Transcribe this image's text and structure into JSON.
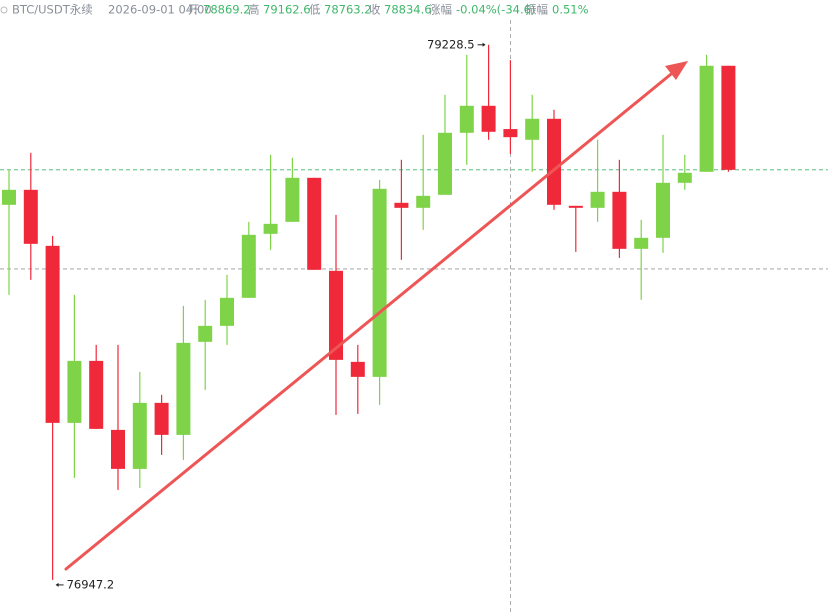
{
  "chart_data": {
    "type": "candlestick",
    "header": {
      "symbol": "BTC/USDT永续",
      "time": "2026-09-01 04:00",
      "open_label": "开",
      "high_label": "高",
      "low_label": "低",
      "close_label": "收",
      "change_label": "涨幅",
      "change": "-0.04%(-34.6)",
      "amplitude_label": "振幅",
      "amplitude": "0.51%"
    },
    "up_color": "#7ed348",
    "down_color": "#f0293a",
    "ylim": [
      76900,
      79300
    ],
    "crosshair": {
      "index": 23,
      "price": 78273
    },
    "high_label_index": 22,
    "low_label_index": 2,
    "candles": [
      {
        "open": 78546.2,
        "high": 78695.5,
        "low": 78162.5,
        "close": 78610.2
      },
      {
        "open": 78610.2,
        "high": 78768.0,
        "low": 78226.4,
        "close": 78379.9
      },
      {
        "open": 78371.4,
        "high": 78414.1,
        "low": 76947.2,
        "close": 77616.7
      },
      {
        "open": 77616.7,
        "high": 78162.5,
        "low": 77382.1,
        "close": 77881.0
      },
      {
        "open": 77881.0,
        "high": 77949.3,
        "low": 77591.1,
        "close": 77591.1
      },
      {
        "open": 77586.8,
        "high": 77949.3,
        "low": 77331.0,
        "close": 77420.5
      },
      {
        "open": 77420.5,
        "high": 77834.1,
        "low": 77339.5,
        "close": 77702.0
      },
      {
        "open": 77702.0,
        "high": 77736.1,
        "low": 77480.2,
        "close": 77565.5
      },
      {
        "open": 77565.5,
        "high": 78115.6,
        "low": 77458.9,
        "close": 77957.8
      },
      {
        "open": 77962.1,
        "high": 78141.2,
        "low": 77757.4,
        "close": 78030.3
      },
      {
        "open": 78030.3,
        "high": 78247.8,
        "low": 77949.3,
        "close": 78149.7
      },
      {
        "open": 78149.7,
        "high": 78473.8,
        "low": 78149.7,
        "close": 78418.3
      },
      {
        "open": 78422.6,
        "high": 78759.4,
        "low": 78354.4,
        "close": 78465.2
      },
      {
        "open": 78473.8,
        "high": 78746.7,
        "low": 78473.8,
        "close": 78661.4
      },
      {
        "open": 78661.4,
        "high": 78661.4,
        "low": 78269.1,
        "close": 78269.1
      },
      {
        "open": 78264.8,
        "high": 78503.6,
        "low": 77650.8,
        "close": 77885.3
      },
      {
        "open": 77876.8,
        "high": 77949.3,
        "low": 77655.0,
        "close": 77812.8
      },
      {
        "open": 77812.8,
        "high": 78652.8,
        "low": 77693.4,
        "close": 78614.5
      },
      {
        "open": 78554.8,
        "high": 78738.1,
        "low": 78311.7,
        "close": 78533.4
      },
      {
        "open": 78533.4,
        "high": 78844.7,
        "low": 78439.6,
        "close": 78584.6
      },
      {
        "open": 78588.9,
        "high": 79015.3,
        "low": 78588.9,
        "close": 78853.3
      },
      {
        "open": 78853.3,
        "high": 79185.9,
        "low": 78716.8,
        "close": 78968.4
      },
      {
        "open": 78968.4,
        "high": 79228.5,
        "low": 78823.4,
        "close": 78857.5
      },
      {
        "open": 78869.2,
        "high": 79162.6,
        "low": 78763.2,
        "close": 78834.6
      },
      {
        "open": 78823.4,
        "high": 79015.3,
        "low": 78687.0,
        "close": 78913.0
      },
      {
        "open": 78913.0,
        "high": 78951.3,
        "low": 78524.9,
        "close": 78546.2
      },
      {
        "open": 78542.0,
        "high": 78542.0,
        "low": 78345.8,
        "close": 78533.4
      },
      {
        "open": 78533.4,
        "high": 78823.4,
        "low": 78473.8,
        "close": 78601.7
      },
      {
        "open": 78601.7,
        "high": 78738.1,
        "low": 78320.2,
        "close": 78358.6
      },
      {
        "open": 78358.6,
        "high": 78482.3,
        "low": 78141.2,
        "close": 78405.5
      },
      {
        "open": 78405.5,
        "high": 78844.7,
        "low": 78341.6,
        "close": 78640.1
      },
      {
        "open": 78640.1,
        "high": 78759.4,
        "low": 78610.2,
        "close": 78682.7
      },
      {
        "open": 78687.0,
        "high": 79185.9,
        "low": 78687.0,
        "close": 79139.0
      },
      {
        "open": 79139.0,
        "high": 79139.0,
        "low": 78687.0,
        "close": 78695.5
      }
    ]
  }
}
